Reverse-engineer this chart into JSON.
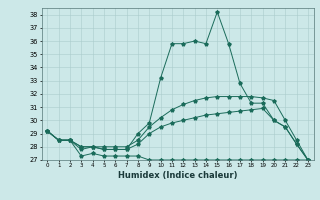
{
  "title": "",
  "xlabel": "Humidex (Indice chaleur)",
  "bg_color": "#cce8e8",
  "line_color": "#1a6b5a",
  "grid_color": "#aacccc",
  "ylim": [
    27,
    38.5
  ],
  "xlim": [
    -0.5,
    23.5
  ],
  "yticks": [
    27,
    28,
    29,
    30,
    31,
    32,
    33,
    34,
    35,
    36,
    37,
    38
  ],
  "xticks": [
    0,
    1,
    2,
    3,
    4,
    5,
    6,
    7,
    8,
    9,
    10,
    11,
    12,
    13,
    14,
    15,
    16,
    17,
    18,
    19,
    20,
    21,
    22,
    23
  ],
  "lines": [
    {
      "y": [
        29.2,
        28.5,
        28.5,
        27.3,
        27.5,
        27.3,
        27.3,
        27.3,
        27.3,
        27.0,
        27.0,
        27.0,
        27.0,
        27.0,
        27.0,
        27.0,
        27.0,
        27.0,
        27.0,
        27.0,
        27.0,
        27.0,
        27.0,
        27.0
      ]
    },
    {
      "y": [
        29.2,
        28.5,
        28.5,
        27.8,
        28.0,
        27.8,
        27.8,
        27.8,
        28.2,
        29.0,
        29.5,
        29.8,
        30.0,
        30.2,
        30.4,
        30.5,
        30.6,
        30.7,
        30.8,
        30.9,
        30.0,
        29.5,
        28.2,
        27.0
      ]
    },
    {
      "y": [
        29.2,
        28.5,
        28.5,
        28.0,
        28.0,
        28.0,
        28.0,
        28.0,
        28.5,
        29.5,
        30.2,
        30.8,
        31.2,
        31.5,
        31.7,
        31.8,
        31.8,
        31.8,
        31.8,
        31.7,
        31.5,
        30.0,
        28.5,
        27.0
      ]
    },
    {
      "y": [
        29.2,
        28.5,
        28.5,
        28.0,
        28.0,
        27.8,
        27.8,
        27.8,
        29.0,
        29.8,
        33.2,
        35.8,
        35.8,
        36.0,
        35.8,
        38.2,
        35.8,
        32.8,
        31.3,
        31.3,
        30.0,
        29.5,
        28.2,
        27.0
      ]
    }
  ]
}
